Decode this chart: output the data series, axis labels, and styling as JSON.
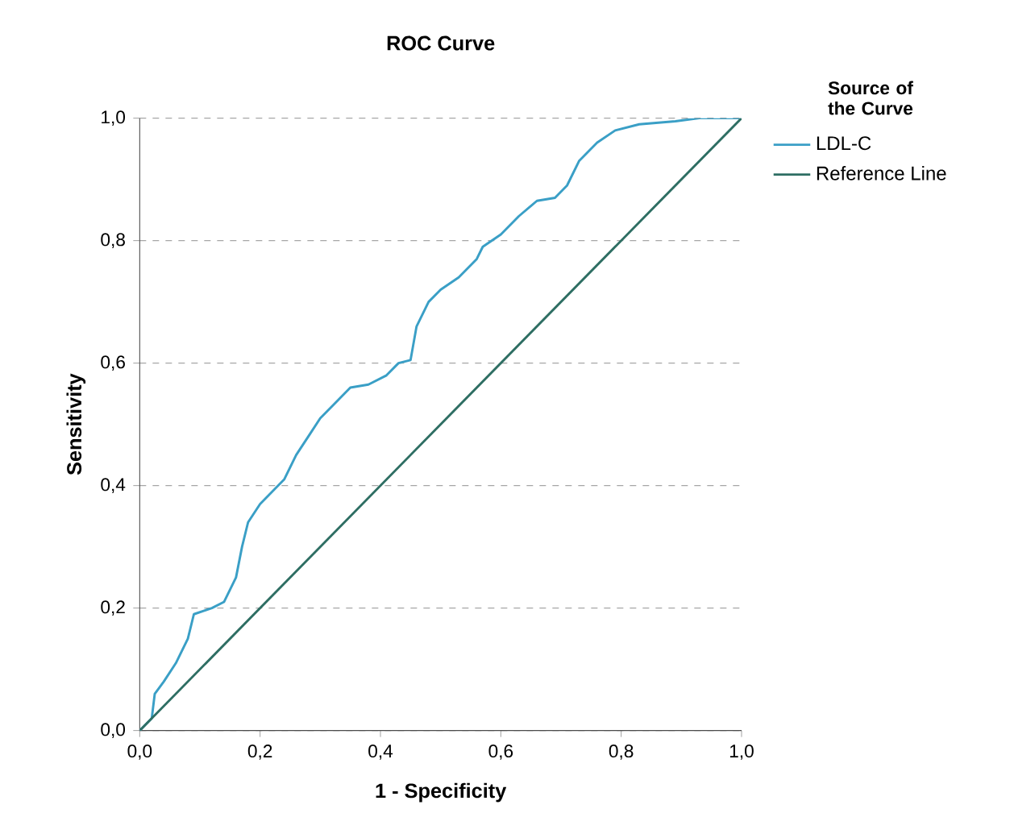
{
  "chart_data": {
    "type": "line",
    "title": "ROC Curve",
    "xlabel": "1 - Specificity",
    "ylabel": "Sensitivity",
    "legend_title": "Source of the Curve",
    "xlim": [
      0,
      1
    ],
    "ylim": [
      0,
      1
    ],
    "xticks": [
      {
        "value": 0,
        "label": "0,0"
      },
      {
        "value": 0.2,
        "label": "0,2"
      },
      {
        "value": 0.4,
        "label": "0,4"
      },
      {
        "value": 0.6,
        "label": "0,6"
      },
      {
        "value": 0.8,
        "label": "0,8"
      },
      {
        "value": 1,
        "label": "1,0"
      }
    ],
    "yticks": [
      {
        "value": 0,
        "label": "0,0"
      },
      {
        "value": 0.2,
        "label": "0,2"
      },
      {
        "value": 0.4,
        "label": "0,4"
      },
      {
        "value": 0.6,
        "label": "0,6"
      },
      {
        "value": 0.8,
        "label": "0,8"
      },
      {
        "value": 1,
        "label": "1,0"
      }
    ],
    "grid": "y",
    "legend": "right",
    "marker": "none",
    "series": [
      {
        "name": "LDL-C",
        "color": "#3a9fc6",
        "x": [
          0,
          0.02,
          0.025,
          0.04,
          0.06,
          0.08,
          0.09,
          0.12,
          0.14,
          0.16,
          0.17,
          0.18,
          0.2,
          0.22,
          0.24,
          0.26,
          0.28,
          0.3,
          0.33,
          0.35,
          0.38,
          0.41,
          0.43,
          0.45,
          0.46,
          0.48,
          0.5,
          0.53,
          0.56,
          0.57,
          0.6,
          0.63,
          0.66,
          0.69,
          0.71,
          0.73,
          0.76,
          0.79,
          0.83,
          0.89,
          0.93,
          1
        ],
        "values": [
          0,
          0.02,
          0.06,
          0.08,
          0.11,
          0.15,
          0.19,
          0.2,
          0.21,
          0.25,
          0.3,
          0.34,
          0.37,
          0.39,
          0.41,
          0.45,
          0.48,
          0.51,
          0.54,
          0.56,
          0.565,
          0.58,
          0.6,
          0.605,
          0.66,
          0.7,
          0.72,
          0.74,
          0.77,
          0.79,
          0.81,
          0.84,
          0.865,
          0.87,
          0.89,
          0.93,
          0.96,
          0.98,
          0.99,
          0.995,
          1,
          1
        ]
      },
      {
        "name": "Reference Line",
        "color": "#2e6e63",
        "x": [
          0,
          1
        ],
        "values": [
          0,
          1
        ]
      }
    ]
  }
}
